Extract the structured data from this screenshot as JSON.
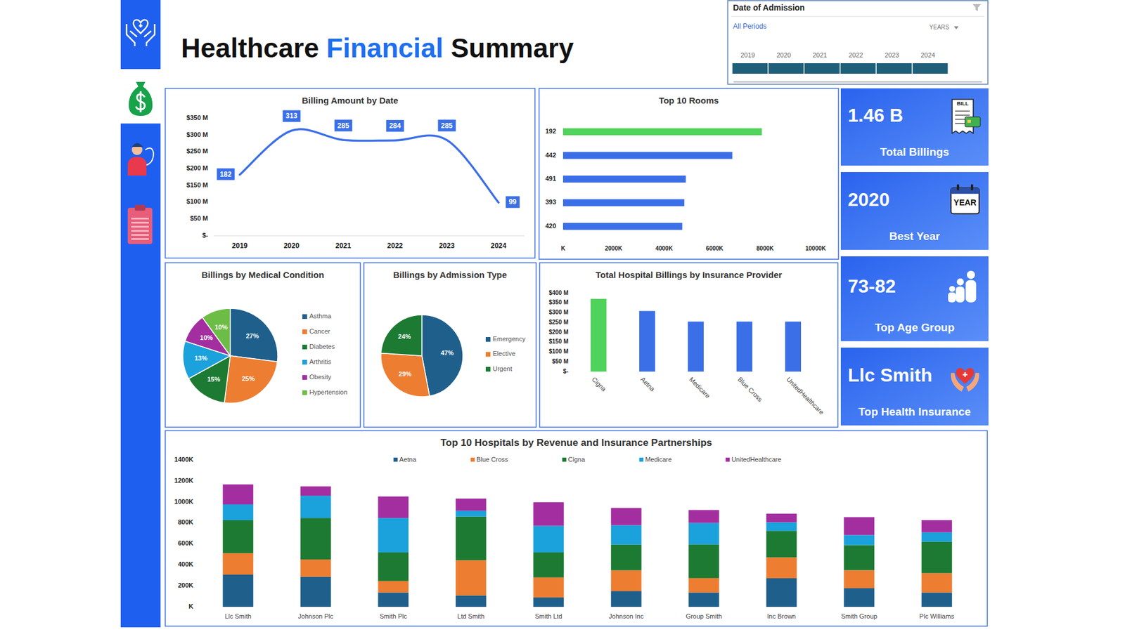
{
  "header": {
    "title_parts": [
      "Healthcare",
      "Financial",
      "Summary"
    ]
  },
  "slicer": {
    "title": "Date of Admission",
    "selection": "All Periods",
    "level": "YEARS",
    "years": [
      2019,
      2020,
      2021,
      2022,
      2023,
      2024
    ]
  },
  "kpis": [
    {
      "value": "1.46 B",
      "label": "Total Billings",
      "icon_text": "BILL"
    },
    {
      "value": "2020",
      "label": "Best Year",
      "icon_text": "YEAR"
    },
    {
      "value": "73-82",
      "label": "Top Age Group"
    },
    {
      "value": "Llc Smith",
      "label": "Top Health Insurance"
    }
  ],
  "chart_data": [
    {
      "type": "line",
      "title": "Billing Amount by Date",
      "categories": [
        "2019",
        "2020",
        "2021",
        "2022",
        "2023",
        "2024"
      ],
      "values": [
        182,
        313,
        285,
        284,
        285,
        99
      ],
      "color": "#3b6fe8",
      "ylim": [
        0,
        350
      ],
      "yticks": [
        {
          "value": 0,
          "label": "$-"
        },
        {
          "value": 50,
          "label": "$50 M"
        },
        {
          "value": 100,
          "label": "$100 M"
        },
        {
          "value": 150,
          "label": "$150 M"
        },
        {
          "value": 200,
          "label": "$200 M"
        },
        {
          "value": 250,
          "label": "$250 M"
        },
        {
          "value": 300,
          "label": "$300 M"
        },
        {
          "value": 350,
          "label": "$350 M"
        }
      ],
      "data_labels": true,
      "line_style": "smooth",
      "grid": false
    },
    {
      "type": "bar",
      "orientation": "horizontal",
      "title": "Top 10 Rooms",
      "categories": [
        "192",
        "442",
        "491",
        "393",
        "420"
      ],
      "values": [
        7870,
        6700,
        4860,
        4800,
        4720
      ],
      "colors": [
        "#4fd35a",
        "#3b6fe8",
        "#3b6fe8",
        "#3b6fe8",
        "#3b6fe8"
      ],
      "xlim": [
        0,
        10000
      ],
      "xticks": [
        {
          "value": 0,
          "label": "K"
        },
        {
          "value": 2000,
          "label": "2000K"
        },
        {
          "value": 4000,
          "label": "4000K"
        },
        {
          "value": 6000,
          "label": "6000K"
        },
        {
          "value": 8000,
          "label": "8000K"
        },
        {
          "value": 10000,
          "label": "10000K"
        }
      ],
      "grid": false
    },
    {
      "type": "pie",
      "title": "Billings by Medical Condition",
      "categories": [
        "Asthma",
        "Cancer",
        "Diabetes",
        "Arthritis",
        "Obesity",
        "Hypertension"
      ],
      "values": [
        27,
        25,
        15,
        13,
        10,
        10
      ],
      "value_labels": [
        "27%",
        "25%",
        "15%",
        "13%",
        "10%",
        "10%"
      ],
      "colors": [
        "#1f5f8b",
        "#ed7d31",
        "#1d7a32",
        "#1ba1db",
        "#a32ea0",
        "#6cbd45"
      ],
      "data_labels": true,
      "legend": "right"
    },
    {
      "type": "pie",
      "title": "Billings by Admission Type",
      "categories": [
        "Emergency",
        "Elective",
        "Urgent"
      ],
      "values": [
        47,
        29,
        24
      ],
      "value_labels": [
        "47%",
        "29%",
        "24%"
      ],
      "colors": [
        "#1f5f8b",
        "#ed7d31",
        "#1d7a32"
      ],
      "data_labels": true,
      "legend": "right"
    },
    {
      "type": "bar",
      "title": "Total Hospital Billings by Insurance Provider",
      "categories": [
        "Cigna",
        "Aetna",
        "Medicare",
        "Blue Cross",
        "UnitedHealthcare"
      ],
      "values": [
        371,
        309,
        255,
        255,
        255
      ],
      "colors": [
        "#4fd35a",
        "#3b6fe8",
        "#3b6fe8",
        "#3b6fe8",
        "#3b6fe8"
      ],
      "ylim": [
        0,
        400
      ],
      "yticks": [
        {
          "value": 0,
          "label": "$-"
        },
        {
          "value": 50,
          "label": "$50 M"
        },
        {
          "value": 100,
          "label": "$100 M"
        },
        {
          "value": 150,
          "label": "$150 M"
        },
        {
          "value": 200,
          "label": "$200 M"
        },
        {
          "value": 250,
          "label": "$250 M"
        },
        {
          "value": 300,
          "label": "$300 M"
        },
        {
          "value": 350,
          "label": "$350 M"
        },
        {
          "value": 400,
          "label": "$400 M"
        }
      ],
      "grid": false
    },
    {
      "type": "bar",
      "stacked": true,
      "title": "Top 10 Hospitals by Revenue and Insurance Partnerships",
      "categories": [
        "Llc Smith",
        "Johnson Plc",
        "Smith Plc",
        "Ltd Smith",
        "Smith Ltd",
        "Johnson Inc",
        "Group Smith",
        "Inc Brown",
        "Smith Group",
        "Plc Williams"
      ],
      "series": [
        {
          "name": "Aetna",
          "color": "#1f5f8b",
          "values": [
            307,
            287,
            137,
            109,
            89,
            150,
            137,
            273,
            178,
            137
          ]
        },
        {
          "name": "Blue Cross",
          "color": "#ed7d31",
          "values": [
            205,
            164,
            109,
            335,
            191,
            198,
            137,
            198,
            171,
            184
          ]
        },
        {
          "name": "Cigna",
          "color": "#1d7a32",
          "values": [
            314,
            396,
            273,
            417,
            239,
            246,
            321,
            253,
            239,
            300
          ]
        },
        {
          "name": "Medicare",
          "color": "#1ba1db",
          "values": [
            150,
            212,
            328,
            55,
            253,
            184,
            205,
            82,
            96,
            89
          ]
        },
        {
          "name": "UnitedHealthcare",
          "color": "#a32ea0",
          "values": [
            191,
            89,
            205,
            116,
            225,
            164,
            123,
            82,
            171,
            116
          ]
        }
      ],
      "ylim": [
        0,
        1400
      ],
      "yticks": [
        {
          "value": 0,
          "label": "K"
        },
        {
          "value": 200,
          "label": "200K"
        },
        {
          "value": 400,
          "label": "400K"
        },
        {
          "value": 600,
          "label": "600K"
        },
        {
          "value": 800,
          "label": "800K"
        },
        {
          "value": 1000,
          "label": "1000K"
        },
        {
          "value": 1200,
          "label": "1200K"
        },
        {
          "value": 1400,
          "label": "1400K"
        }
      ],
      "legend": "top",
      "grid": false
    }
  ]
}
